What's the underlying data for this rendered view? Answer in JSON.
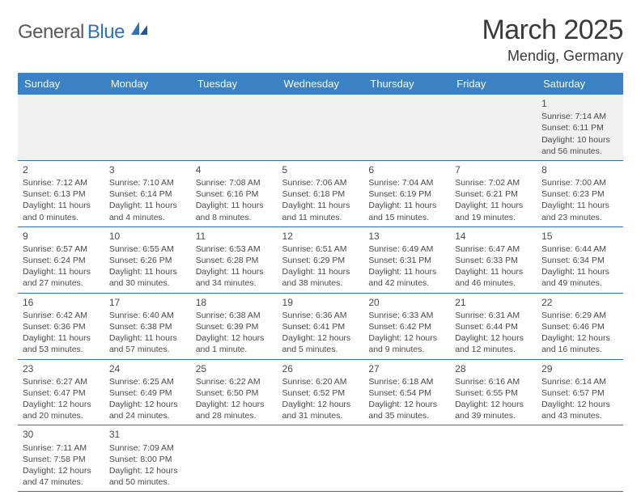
{
  "logo": {
    "text_general": "General",
    "text_blue": "Blue"
  },
  "title": {
    "month": "March 2025",
    "location": "Mendig, Germany"
  },
  "colors": {
    "header_bg": "#3a82c4",
    "header_text": "#ffffff",
    "rule": "#2f72b8",
    "blank_bg": "#f1f1f1",
    "body_text": "#4a4a4a",
    "logo_gray": "#5a5a5a",
    "logo_blue": "#2f72b8"
  },
  "weekdays": [
    "Sunday",
    "Monday",
    "Tuesday",
    "Wednesday",
    "Thursday",
    "Friday",
    "Saturday"
  ],
  "weeks": [
    [
      null,
      null,
      null,
      null,
      null,
      null,
      {
        "n": "1",
        "sunrise": "Sunrise: 7:14 AM",
        "sunset": "Sunset: 6:11 PM",
        "daylight": "Daylight: 10 hours and 56 minutes."
      }
    ],
    [
      {
        "n": "2",
        "sunrise": "Sunrise: 7:12 AM",
        "sunset": "Sunset: 6:13 PM",
        "daylight": "Daylight: 11 hours and 0 minutes."
      },
      {
        "n": "3",
        "sunrise": "Sunrise: 7:10 AM",
        "sunset": "Sunset: 6:14 PM",
        "daylight": "Daylight: 11 hours and 4 minutes."
      },
      {
        "n": "4",
        "sunrise": "Sunrise: 7:08 AM",
        "sunset": "Sunset: 6:16 PM",
        "daylight": "Daylight: 11 hours and 8 minutes."
      },
      {
        "n": "5",
        "sunrise": "Sunrise: 7:06 AM",
        "sunset": "Sunset: 6:18 PM",
        "daylight": "Daylight: 11 hours and 11 minutes."
      },
      {
        "n": "6",
        "sunrise": "Sunrise: 7:04 AM",
        "sunset": "Sunset: 6:19 PM",
        "daylight": "Daylight: 11 hours and 15 minutes."
      },
      {
        "n": "7",
        "sunrise": "Sunrise: 7:02 AM",
        "sunset": "Sunset: 6:21 PM",
        "daylight": "Daylight: 11 hours and 19 minutes."
      },
      {
        "n": "8",
        "sunrise": "Sunrise: 7:00 AM",
        "sunset": "Sunset: 6:23 PM",
        "daylight": "Daylight: 11 hours and 23 minutes."
      }
    ],
    [
      {
        "n": "9",
        "sunrise": "Sunrise: 6:57 AM",
        "sunset": "Sunset: 6:24 PM",
        "daylight": "Daylight: 11 hours and 27 minutes."
      },
      {
        "n": "10",
        "sunrise": "Sunrise: 6:55 AM",
        "sunset": "Sunset: 6:26 PM",
        "daylight": "Daylight: 11 hours and 30 minutes."
      },
      {
        "n": "11",
        "sunrise": "Sunrise: 6:53 AM",
        "sunset": "Sunset: 6:28 PM",
        "daylight": "Daylight: 11 hours and 34 minutes."
      },
      {
        "n": "12",
        "sunrise": "Sunrise: 6:51 AM",
        "sunset": "Sunset: 6:29 PM",
        "daylight": "Daylight: 11 hours and 38 minutes."
      },
      {
        "n": "13",
        "sunrise": "Sunrise: 6:49 AM",
        "sunset": "Sunset: 6:31 PM",
        "daylight": "Daylight: 11 hours and 42 minutes."
      },
      {
        "n": "14",
        "sunrise": "Sunrise: 6:47 AM",
        "sunset": "Sunset: 6:33 PM",
        "daylight": "Daylight: 11 hours and 46 minutes."
      },
      {
        "n": "15",
        "sunrise": "Sunrise: 6:44 AM",
        "sunset": "Sunset: 6:34 PM",
        "daylight": "Daylight: 11 hours and 49 minutes."
      }
    ],
    [
      {
        "n": "16",
        "sunrise": "Sunrise: 6:42 AM",
        "sunset": "Sunset: 6:36 PM",
        "daylight": "Daylight: 11 hours and 53 minutes."
      },
      {
        "n": "17",
        "sunrise": "Sunrise: 6:40 AM",
        "sunset": "Sunset: 6:38 PM",
        "daylight": "Daylight: 11 hours and 57 minutes."
      },
      {
        "n": "18",
        "sunrise": "Sunrise: 6:38 AM",
        "sunset": "Sunset: 6:39 PM",
        "daylight": "Daylight: 12 hours and 1 minute."
      },
      {
        "n": "19",
        "sunrise": "Sunrise: 6:36 AM",
        "sunset": "Sunset: 6:41 PM",
        "daylight": "Daylight: 12 hours and 5 minutes."
      },
      {
        "n": "20",
        "sunrise": "Sunrise: 6:33 AM",
        "sunset": "Sunset: 6:42 PM",
        "daylight": "Daylight: 12 hours and 9 minutes."
      },
      {
        "n": "21",
        "sunrise": "Sunrise: 6:31 AM",
        "sunset": "Sunset: 6:44 PM",
        "daylight": "Daylight: 12 hours and 12 minutes."
      },
      {
        "n": "22",
        "sunrise": "Sunrise: 6:29 AM",
        "sunset": "Sunset: 6:46 PM",
        "daylight": "Daylight: 12 hours and 16 minutes."
      }
    ],
    [
      {
        "n": "23",
        "sunrise": "Sunrise: 6:27 AM",
        "sunset": "Sunset: 6:47 PM",
        "daylight": "Daylight: 12 hours and 20 minutes."
      },
      {
        "n": "24",
        "sunrise": "Sunrise: 6:25 AM",
        "sunset": "Sunset: 6:49 PM",
        "daylight": "Daylight: 12 hours and 24 minutes."
      },
      {
        "n": "25",
        "sunrise": "Sunrise: 6:22 AM",
        "sunset": "Sunset: 6:50 PM",
        "daylight": "Daylight: 12 hours and 28 minutes."
      },
      {
        "n": "26",
        "sunrise": "Sunrise: 6:20 AM",
        "sunset": "Sunset: 6:52 PM",
        "daylight": "Daylight: 12 hours and 31 minutes."
      },
      {
        "n": "27",
        "sunrise": "Sunrise: 6:18 AM",
        "sunset": "Sunset: 6:54 PM",
        "daylight": "Daylight: 12 hours and 35 minutes."
      },
      {
        "n": "28",
        "sunrise": "Sunrise: 6:16 AM",
        "sunset": "Sunset: 6:55 PM",
        "daylight": "Daylight: 12 hours and 39 minutes."
      },
      {
        "n": "29",
        "sunrise": "Sunrise: 6:14 AM",
        "sunset": "Sunset: 6:57 PM",
        "daylight": "Daylight: 12 hours and 43 minutes."
      }
    ],
    [
      {
        "n": "30",
        "sunrise": "Sunrise: 7:11 AM",
        "sunset": "Sunset: 7:58 PM",
        "daylight": "Daylight: 12 hours and 47 minutes."
      },
      {
        "n": "31",
        "sunrise": "Sunrise: 7:09 AM",
        "sunset": "Sunset: 8:00 PM",
        "daylight": "Daylight: 12 hours and 50 minutes."
      },
      null,
      null,
      null,
      null,
      null
    ]
  ]
}
